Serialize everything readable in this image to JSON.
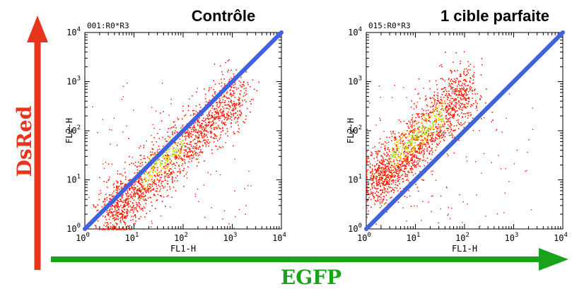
{
  "figure": {
    "y_arrow_label": "DsRed",
    "x_arrow_label": "EGFP",
    "colors": {
      "y_arrow": "#e8341c",
      "x_arrow": "#1aa31a",
      "diagonal": "#3f63e0",
      "dot_low": "#ff1a00",
      "dot_mid": "#ffd200",
      "dot_high": "#9be000"
    }
  },
  "chart_data": [
    {
      "type": "scatter",
      "title": "Contrôle",
      "gate_label": "001:R0*R3",
      "xlabel": "FL1-H",
      "ylabel": "FL2-H",
      "scale": "log",
      "xlim": [
        1,
        10000
      ],
      "ylim": [
        1,
        10000
      ],
      "x_ticks": [
        "10^0",
        "10^1",
        "10^2",
        "10^3",
        "10^4"
      ],
      "y_ticks": [
        "10^0",
        "10^1",
        "10^2",
        "10^3",
        "10^4"
      ],
      "diagonal": [
        [
          1,
          1
        ],
        [
          10000,
          10000
        ]
      ],
      "population": {
        "shape": "elongated cloud along and just below the diagonal",
        "center_start": [
          3,
          1.8
        ],
        "center_end": [
          1500,
          650
        ],
        "spread_log": 0.28,
        "dense_core": [
          [
            15,
            12
          ],
          [
            100,
            60
          ]
        ]
      }
    },
    {
      "type": "scatter",
      "title": "1 cible parfaite",
      "gate_label": "015:R0*R3",
      "xlabel": "FL1-H",
      "ylabel": "FL2-H",
      "scale": "log",
      "xlim": [
        1,
        10000
      ],
      "ylim": [
        1,
        10000
      ],
      "x_ticks": [
        "10^0",
        "10^1",
        "10^2",
        "10^3",
        "10^4"
      ],
      "y_ticks": [
        "10^0",
        "10^1",
        "10^2",
        "10^3",
        "10^4"
      ],
      "diagonal": [
        [
          1,
          1
        ],
        [
          10000,
          10000
        ]
      ],
      "population": {
        "shape": "elongated cloud well above the diagonal",
        "center_start": [
          1.5,
          8
        ],
        "center_end": [
          120,
          800
        ],
        "spread_log": 0.3,
        "dense_core": [
          [
            3,
            30
          ],
          [
            40,
            250
          ]
        ]
      }
    }
  ]
}
